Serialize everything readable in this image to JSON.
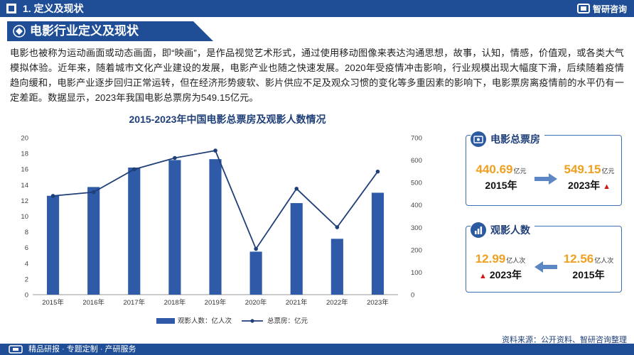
{
  "header": {
    "section_title": "1. 定义及现状",
    "brand": "智研咨询"
  },
  "banner": {
    "title": "电影行业定义及现状"
  },
  "paragraph": "电影也被称为运动画面或动态画面，即“映画”，是作品视觉艺术形式，通过使用移动图像来表达沟通思想，故事，认知，情感，价值观，或各类大气模拟体验。近年来，随着城市文化产业建设的发展，电影产业也随之快速发展。2020年受疫情冲击影响，行业规模出现大幅度下滑，后续随着疫情趋向缓和，电影产业逐步回归正常运转，但在经济形势疲软、影片供应不足及观众习惯的变化等多重因素的影响下，电影票房离疫情前的水平仍有一定差距。数据显示，2023年我国电影总票房为549.15亿元。",
  "chart_data": {
    "type": "bar+line",
    "title": "2015-2023年中国电影总票房及观影人数情况",
    "categories": [
      "2015年",
      "2016年",
      "2017年",
      "2018年",
      "2019年",
      "2020年",
      "2021年",
      "2022年",
      "2023年"
    ],
    "series": [
      {
        "name": "观影人数：亿人次",
        "type": "bar",
        "axis": "left",
        "color": "#2f5aa8",
        "values": [
          12.6,
          13.72,
          16.2,
          17.16,
          17.27,
          5.48,
          11.67,
          7.12,
          12.99
        ]
      },
      {
        "name": "总票房：亿元",
        "type": "line",
        "axis": "right",
        "color": "#1f3f78",
        "values": [
          440.69,
          457.12,
          559.11,
          609.76,
          642.66,
          204.17,
          472.58,
          300.67,
          549.15
        ]
      }
    ],
    "ylim_left": [
      0,
      20
    ],
    "yticks_left": [
      0,
      2,
      4,
      6,
      8,
      10,
      12,
      14,
      16,
      18,
      20
    ],
    "ylim_right": [
      0,
      700
    ],
    "yticks_right": [
      0,
      100,
      200,
      300,
      400,
      500,
      600,
      700
    ],
    "grid": false,
    "legend": "bottom"
  },
  "card_box_office": {
    "title": "电影总票房",
    "from_value": "440.69",
    "from_unit": "亿元",
    "from_year": "2015年",
    "to_value": "549.15",
    "to_unit": "亿元",
    "to_year": "2023年"
  },
  "card_audience": {
    "title": "观影人数",
    "left_value": "12.99",
    "left_unit": "亿人次",
    "left_year": "2023年",
    "right_value": "12.56",
    "right_unit": "亿人次",
    "right_year": "2015年"
  },
  "footer": {
    "source": "资料来源：公开资料、智研咨询整理",
    "slogan": "精品研报 · 专题定制 · 产研服务"
  },
  "colors": {
    "primary": "#1f4e96",
    "bar": "#2f5aa8",
    "accent": "#f0a020",
    "up": "#d01818"
  }
}
